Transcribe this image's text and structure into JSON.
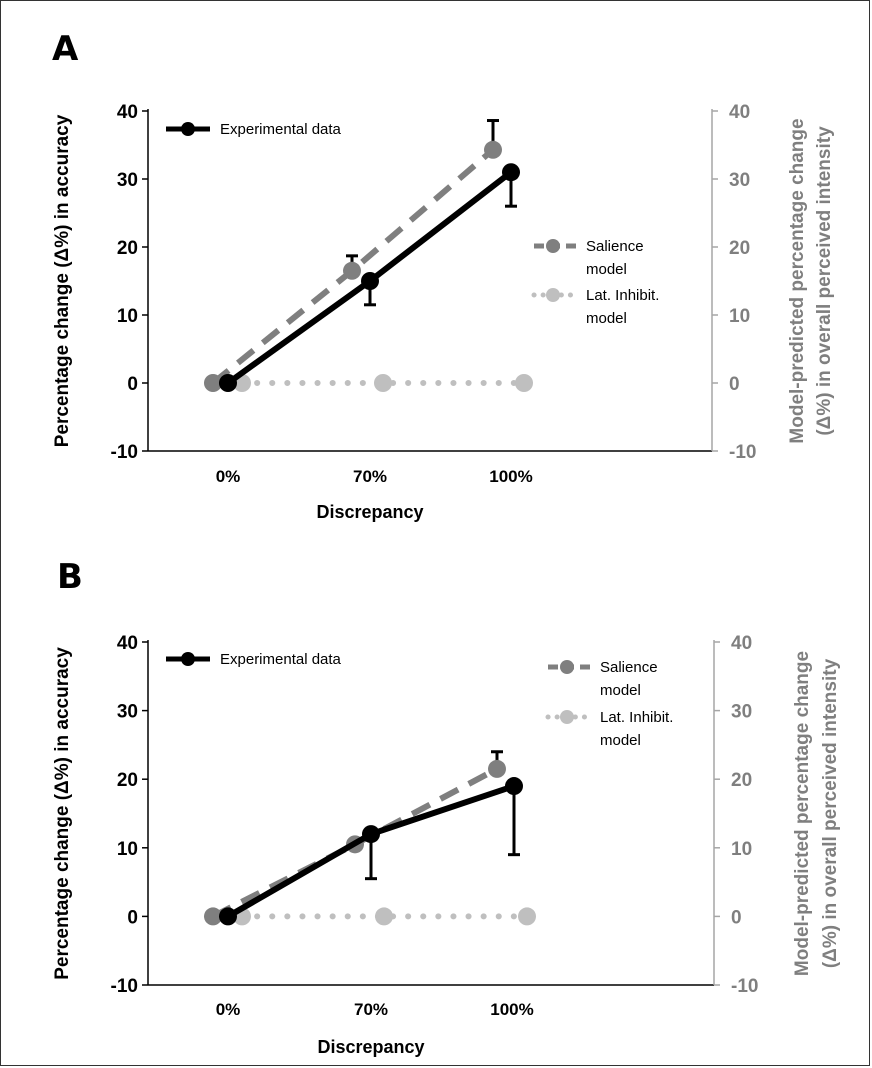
{
  "chart_data": [
    {
      "type": "line",
      "panel_label": "A",
      "categories": [
        "0%",
        "70%",
        "100%"
      ],
      "xlabel": "Discrepancy",
      "ylabel": "Percentage change (Δ%) in accuracy",
      "y2label_line1": "Model-predicted percentage change",
      "y2label_line2": "(Δ%) in overall perceived intensity",
      "ylim": [
        -10,
        40
      ],
      "y2lim": [
        -10,
        40
      ],
      "yticks": [
        -10,
        0,
        10,
        20,
        30,
        40
      ],
      "series": [
        {
          "name": "Experimental data",
          "axis": "left",
          "style": "solid",
          "color": "#000000",
          "values": [
            0,
            15,
            31
          ],
          "error": [
            0,
            3.5,
            5
          ]
        },
        {
          "name": "Salience model",
          "axis": "right",
          "style": "dashed",
          "color": "#7f7f7f",
          "values": [
            0,
            16.5,
            34.3
          ],
          "error_up": [
            0,
            2.2,
            4.3
          ]
        },
        {
          "name": "Lat. Inhibit. model",
          "axis": "right",
          "style": "dotted",
          "color": "#bfbfbf",
          "values": [
            0,
            0,
            0
          ]
        }
      ],
      "legend": {
        "experimental": "Experimental data",
        "salience_line1": "Salience",
        "salience_line2": "model",
        "latinhib_line1": "Lat. Inhibit.",
        "latinhib_line2": "model"
      }
    },
    {
      "type": "line",
      "panel_label": "B",
      "categories": [
        "0%",
        "70%",
        "100%"
      ],
      "xlabel": "Discrepancy",
      "ylabel": "Percentage change (Δ%) in accuracy",
      "y2label_line1": "Model-predicted percentage change",
      "y2label_line2": "(Δ%) in overall perceived intensity",
      "ylim": [
        -10,
        40
      ],
      "y2lim": [
        -10,
        40
      ],
      "yticks": [
        -10,
        0,
        10,
        20,
        30,
        40
      ],
      "series": [
        {
          "name": "Experimental data",
          "axis": "left",
          "style": "solid",
          "color": "#000000",
          "values": [
            0,
            12,
            19
          ],
          "error": [
            0,
            6.5,
            10
          ]
        },
        {
          "name": "Salience model",
          "axis": "right",
          "style": "dashed",
          "color": "#7f7f7f",
          "values": [
            0,
            10.5,
            21.5
          ],
          "error_up": [
            0,
            0,
            2.5
          ]
        },
        {
          "name": "Lat. Inhibit. model",
          "axis": "right",
          "style": "dotted",
          "color": "#bfbfbf",
          "values": [
            0,
            0,
            0
          ]
        }
      ],
      "legend": {
        "experimental": "Experimental data",
        "salience_line1": "Salience",
        "salience_line2": "model",
        "latinhib_line1": "Lat. Inhibit.",
        "latinhib_line2": "model"
      }
    }
  ]
}
